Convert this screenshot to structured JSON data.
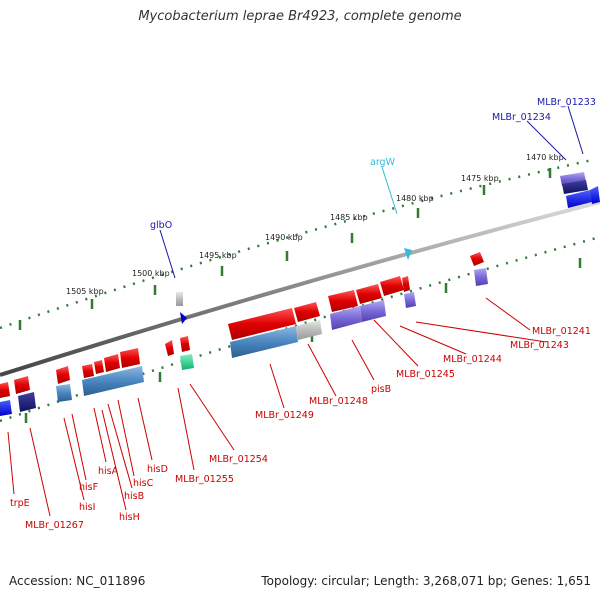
{
  "header": {
    "title": "Mycobacterium leprae Br4923, complete genome"
  },
  "footer": {
    "accession": "Accession: NC_011896",
    "summary": "Topology: circular; Length: 3,268,071 bp; Genes: 1,651"
  },
  "colors": {
    "forward_cds": "#ee0000",
    "reverse_cds": "#4a86c0",
    "purple_cds": "#7a6ad8",
    "gray_feature": "#bbbbbb",
    "trna_label": "#33bbdd",
    "gene_label": "#cc0000",
    "blue_label": "#1a1aaa",
    "backbone": "#888888",
    "scale_dots": "#2e7d32"
  },
  "scale_labels": [
    "1470 kbp",
    "1475 kbp",
    "1480 kbp",
    "1485 kbp",
    "1490 kbp",
    "1495 kbp",
    "1500 kbp",
    "1505 kbp"
  ],
  "top_labels": [
    "MLBr_01233",
    "MLBr_01234",
    "argW",
    "glbO"
  ],
  "bottom_labels": [
    "MLBr_01241",
    "MLBr_01243",
    "MLBr_01244",
    "MLBr_01245",
    "pisB",
    "MLBr_01248",
    "MLBr_01249",
    "MLBr_01254",
    "MLBr_01255",
    "hisD",
    "hisC",
    "hisA",
    "hisB",
    "hisH",
    "hisF",
    "hisI",
    "trpE",
    "MLBr_01267"
  ]
}
